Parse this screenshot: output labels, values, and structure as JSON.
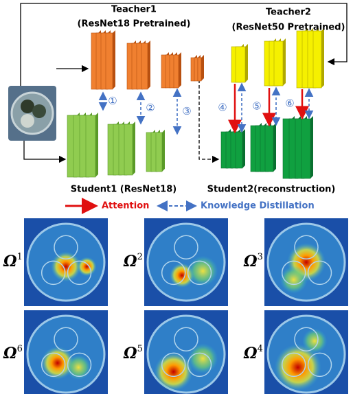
{
  "teachers": [
    {
      "name": "Teacher1",
      "backbone": "(ResNet18 Pretrained)"
    },
    {
      "name": "Teacher2",
      "backbone": "(ResNet50 Pretrained)"
    }
  ],
  "students": [
    "Student1 (ResNet18)",
    "Student2(reconstruction)"
  ],
  "legend": {
    "attention": "Attention",
    "distillation": "Knowledge Distillation"
  },
  "links": [
    "①",
    "②",
    "③",
    "④",
    "⑤",
    "⑥"
  ],
  "maps": [
    {
      "symbol": "Ω",
      "sup": "1"
    },
    {
      "symbol": "Ω",
      "sup": "2"
    },
    {
      "symbol": "Ω",
      "sup": "3"
    },
    {
      "symbol": "Ω",
      "sup": "6"
    },
    {
      "symbol": "Ω",
      "sup": "5"
    },
    {
      "symbol": "Ω",
      "sup": "4"
    }
  ]
}
